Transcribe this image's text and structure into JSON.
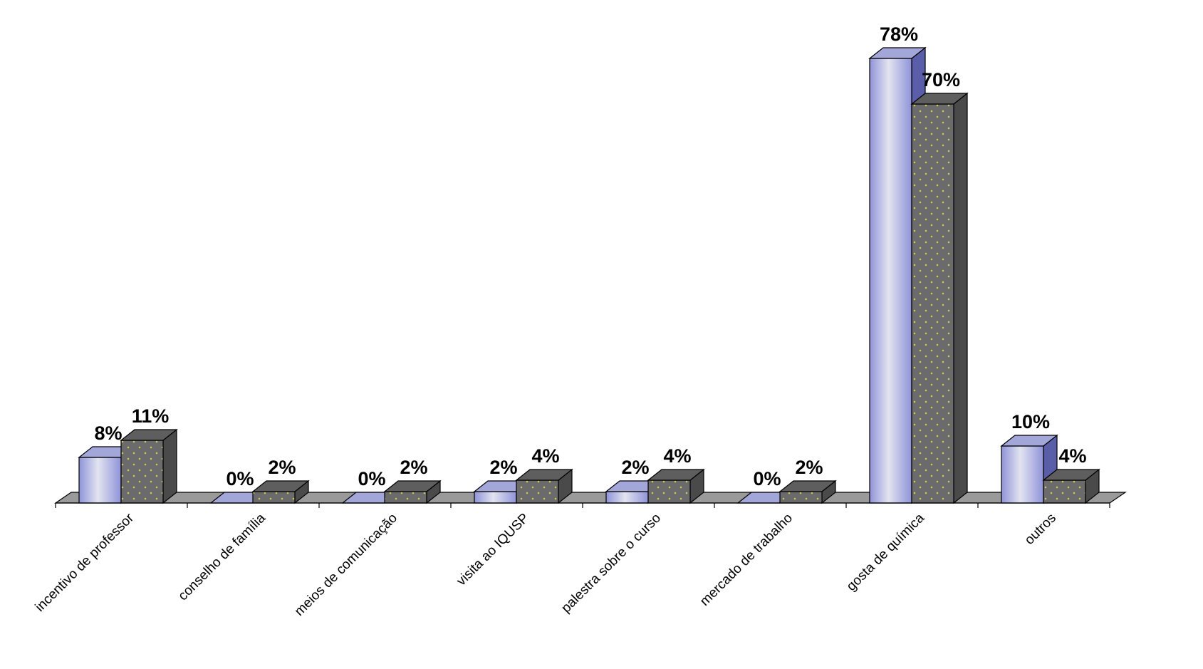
{
  "chart_data": {
    "type": "bar",
    "style": "3d-clustered-column",
    "categories": [
      "incentivo de professor",
      "conselho de família",
      "meios de comunicação",
      "visita ao IQUSP",
      "palestra sobre o curso",
      "mercado de trabalho",
      "gosta de química",
      "outros"
    ],
    "series": [
      {
        "values": [
          8,
          0,
          0,
          2,
          2,
          0,
          78,
          10
        ],
        "labels": [
          "8%",
          "0%",
          "0%",
          "2%",
          "2%",
          "0%",
          "78%",
          "10%"
        ]
      },
      {
        "values": [
          11,
          2,
          2,
          4,
          4,
          2,
          70,
          4
        ],
        "labels": [
          "11%",
          "2%",
          "2%",
          "4%",
          "4%",
          "2%",
          "70%",
          "4%"
        ]
      }
    ],
    "colors": {
      "series1_front_light": "#e2e4f0",
      "series1_front_dark": "#8f93d8",
      "series1_side": "#5a5ea8",
      "series1_top": "#a3a6d8",
      "series2_front": "#6b6b6b",
      "series2_side": "#4a4a4a",
      "series2_top": "#5e5e5e",
      "series2_dots": "#d4c35a",
      "floor": "#9a9a9a"
    },
    "title": "",
    "xlabel": "",
    "ylabel": "",
    "ylim": [
      0,
      80
    ],
    "grid": false,
    "legend": "none"
  }
}
